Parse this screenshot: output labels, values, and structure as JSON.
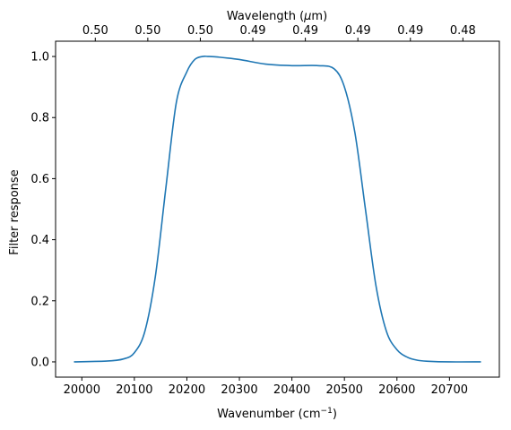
{
  "chart_data": {
    "type": "line",
    "xlabel": "Wavenumber (cm",
    "xlabel_sup": "−1",
    "xlabel_tail": ")",
    "ylabel": "Filter response",
    "top_xlabel_pre": "Wavelength (",
    "top_xlabel_mu": "μ",
    "top_xlabel_post": "m)",
    "xlim": [
      19950,
      20795
    ],
    "ylim": [
      -0.05,
      1.05
    ],
    "x_ticks": [
      20000,
      20100,
      20200,
      20300,
      20400,
      20500,
      20600,
      20700
    ],
    "x_tick_labels": [
      "20000",
      "20100",
      "20200",
      "20300",
      "20400",
      "20500",
      "20600",
      "20700"
    ],
    "y_ticks": [
      0.0,
      0.2,
      0.4,
      0.6,
      0.8,
      1.0
    ],
    "y_tick_labels": [
      "0.0",
      "0.2",
      "0.4",
      "0.6",
      "0.8",
      "1.0"
    ],
    "top_ticks_at_wavenumber": [
      20000,
      20100,
      20200,
      20300,
      20400,
      20500,
      20600,
      20700
    ],
    "top_tick_labels": [
      "0.50",
      "0.50",
      "0.50",
      "0.49",
      "0.49",
      "0.49",
      "0.49",
      "0.48"
    ],
    "series": [
      {
        "color": "#1f77b4",
        "x": [
          19985,
          20050,
          20080,
          20100,
          20120,
          20140,
          20160,
          20180,
          20200,
          20215,
          20230,
          20240,
          20260,
          20300,
          20350,
          20400,
          20450,
          20480,
          20500,
          20520,
          20540,
          20560,
          20580,
          20600,
          20620,
          20640,
          20660,
          20700,
          20760
        ],
        "y": [
          0.0,
          0.003,
          0.01,
          0.03,
          0.1,
          0.28,
          0.57,
          0.85,
          0.95,
          0.99,
          1.0,
          1.0,
          0.998,
          0.99,
          0.975,
          0.97,
          0.97,
          0.96,
          0.9,
          0.75,
          0.5,
          0.25,
          0.1,
          0.04,
          0.015,
          0.005,
          0.002,
          0.0,
          0.0
        ]
      }
    ]
  }
}
